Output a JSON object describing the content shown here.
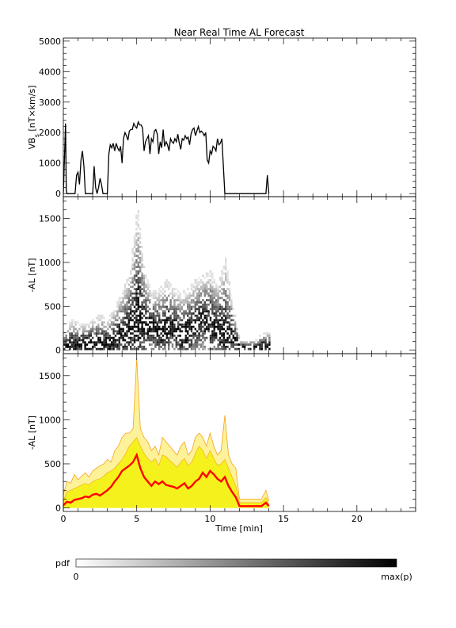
{
  "title": "Near Real Time AL Forecast",
  "x_axis": {
    "label": "Time [min]",
    "range": [
      0,
      24
    ],
    "ticks": [
      0,
      5,
      10,
      15,
      20
    ],
    "tick_labels": [
      "0",
      "5",
      "10",
      "15",
      "20"
    ]
  },
  "colorbar": {
    "label": "pdf",
    "min_label": "0",
    "max_label": "max(p)",
    "gradient": [
      "#ffffff",
      "#000000"
    ]
  },
  "chart_data": [
    {
      "type": "line",
      "panel": "vbs",
      "ylabel": "VB",
      "ylabel_sub": "s",
      "ylabel_rest": " [nT×km/s]",
      "ylim": [
        -100,
        5100
      ],
      "yticks": [
        0,
        1000,
        2000,
        3000,
        4000,
        5000
      ],
      "series": [
        {
          "color": "#000000",
          "x": [
            0.0,
            0.15,
            0.2,
            0.25,
            0.4,
            0.6,
            0.8,
            0.9,
            1.0,
            1.1,
            1.2,
            1.3,
            1.4,
            1.5,
            1.6,
            1.8,
            2.0,
            2.1,
            2.2,
            2.3,
            2.4,
            2.5,
            2.6,
            2.7,
            2.8,
            3.0,
            3.1,
            3.2,
            3.3,
            3.4,
            3.5,
            3.6,
            3.7,
            3.8,
            3.9,
            4.0,
            4.1,
            4.2,
            4.3,
            4.4,
            4.5,
            4.6,
            4.7,
            4.8,
            4.9,
            5.0,
            5.1,
            5.2,
            5.3,
            5.4,
            5.5,
            5.6,
            5.7,
            5.8,
            5.9,
            6.0,
            6.1,
            6.2,
            6.3,
            6.4,
            6.5,
            6.6,
            6.7,
            6.8,
            6.9,
            7.0,
            7.1,
            7.2,
            7.3,
            7.4,
            7.5,
            7.6,
            7.7,
            7.8,
            7.9,
            8.0,
            8.1,
            8.2,
            8.3,
            8.4,
            8.5,
            8.6,
            8.7,
            8.8,
            8.9,
            9.0,
            9.1,
            9.2,
            9.3,
            9.4,
            9.5,
            9.6,
            9.7,
            9.8,
            9.9,
            10.0,
            10.1,
            10.2,
            10.3,
            10.4,
            10.5,
            10.6,
            10.7,
            10.8,
            11.0,
            12.0,
            13.0,
            13.8,
            13.9,
            14.0
          ],
          "values": [
            0,
            2300,
            100,
            0,
            0,
            0,
            0,
            600,
            700,
            300,
            1100,
            1400,
            900,
            0,
            0,
            0,
            0,
            900,
            200,
            0,
            200,
            500,
            300,
            0,
            0,
            0,
            1300,
            1600,
            1500,
            1650,
            1400,
            1650,
            1500,
            1400,
            1550,
            1000,
            1800,
            2000,
            1900,
            1750,
            2050,
            2100,
            2100,
            2300,
            2200,
            2150,
            2350,
            2250,
            2250,
            2150,
            1400,
            1700,
            1800,
            1900,
            1300,
            1800,
            1700,
            2050,
            2100,
            1950,
            1300,
            1700,
            1500,
            2100,
            1550,
            1700,
            1600,
            1400,
            1800,
            1700,
            1650,
            1800,
            1700,
            1950,
            1650,
            1450,
            1800,
            1750,
            1900,
            1800,
            1850,
            1600,
            1950,
            2100,
            2150,
            1900,
            2050,
            2200,
            2000,
            2050,
            2000,
            1900,
            2000,
            1100,
            1000,
            1400,
            1300,
            1550,
            1500,
            1400,
            1800,
            1600,
            1650,
            1800,
            0,
            0,
            0,
            0,
            600,
            0
          ]
        }
      ]
    },
    {
      "type": "heatmap",
      "panel": "al_pdf",
      "ylabel": "-AL [nT]",
      "ylim": [
        -40,
        1750
      ],
      "yticks": [
        0,
        500,
        1000,
        1500
      ],
      "x_bins": [
        0.0,
        0.5,
        1.0,
        1.5,
        2.0,
        2.5,
        3.0,
        3.5,
        4.0,
        4.5,
        5.0,
        5.5,
        6.0,
        6.5,
        7.0,
        7.5,
        8.0,
        8.5,
        9.0,
        9.5,
        10.0,
        10.5,
        11.0,
        11.5,
        12.0,
        12.5,
        13.0,
        13.5
      ],
      "median": [
        10,
        30,
        50,
        60,
        70,
        60,
        50,
        100,
        150,
        250,
        400,
        300,
        250,
        200,
        250,
        250,
        150,
        200,
        300,
        350,
        300,
        250,
        150,
        150,
        20,
        20,
        20,
        20
      ],
      "upper": [
        200,
        350,
        300,
        300,
        350,
        400,
        350,
        500,
        700,
        900,
        1650,
        900,
        650,
        700,
        800,
        700,
        650,
        700,
        800,
        850,
        900,
        750,
        1050,
        500,
        100,
        100,
        100,
        200
      ]
    },
    {
      "type": "area",
      "panel": "al_forecast",
      "ylabel": "-AL [nT]",
      "ylim": [
        -40,
        1750
      ],
      "yticks": [
        0,
        500,
        1000,
        1500
      ],
      "x": [
        0.0,
        0.25,
        0.5,
        0.75,
        1.0,
        1.25,
        1.5,
        1.75,
        2.0,
        2.25,
        2.5,
        2.75,
        3.0,
        3.25,
        3.5,
        3.75,
        4.0,
        4.25,
        4.5,
        4.75,
        5.0,
        5.25,
        5.5,
        5.75,
        6.0,
        6.25,
        6.5,
        6.75,
        7.0,
        7.25,
        7.5,
        7.75,
        8.0,
        8.25,
        8.5,
        8.75,
        9.0,
        9.25,
        9.5,
        9.75,
        10.0,
        10.25,
        10.5,
        10.75,
        11.0,
        11.25,
        11.5,
        11.75,
        12.0,
        12.5,
        13.0,
        13.5,
        13.8,
        14.0
      ],
      "series": [
        {
          "role": "upper",
          "color": "#f7a21b",
          "values": [
            150,
            300,
            280,
            380,
            320,
            360,
            400,
            350,
            420,
            450,
            480,
            500,
            550,
            520,
            650,
            700,
            800,
            850,
            850,
            900,
            1700,
            900,
            800,
            750,
            650,
            700,
            600,
            800,
            750,
            700,
            650,
            600,
            700,
            750,
            600,
            650,
            800,
            850,
            800,
            700,
            850,
            700,
            600,
            650,
            1050,
            600,
            500,
            450,
            100,
            100,
            100,
            100,
            200,
            80
          ]
        },
        {
          "role": "band",
          "color": "#f4f11c",
          "values": [
            80,
            180,
            200,
            220,
            240,
            260,
            280,
            260,
            300,
            320,
            330,
            360,
            400,
            420,
            450,
            500,
            550,
            620,
            700,
            750,
            800,
            700,
            620,
            560,
            520,
            560,
            480,
            600,
            580,
            540,
            500,
            460,
            520,
            560,
            480,
            520,
            620,
            700,
            650,
            560,
            650,
            560,
            480,
            500,
            550,
            450,
            350,
            250,
            60,
            60,
            60,
            60,
            120,
            40
          ]
        },
        {
          "role": "median",
          "color": "#ff0000",
          "values": [
            30,
            70,
            60,
            90,
            100,
            110,
            130,
            120,
            150,
            160,
            140,
            170,
            200,
            240,
            300,
            350,
            420,
            450,
            480,
            520,
            600,
            450,
            350,
            300,
            250,
            300,
            270,
            300,
            260,
            250,
            240,
            220,
            250,
            280,
            220,
            250,
            300,
            330,
            400,
            350,
            420,
            380,
            330,
            300,
            350,
            250,
            180,
            120,
            20,
            20,
            20,
            20,
            60,
            20
          ]
        }
      ]
    }
  ]
}
